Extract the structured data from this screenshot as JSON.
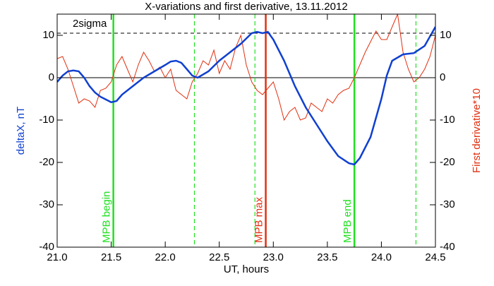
{
  "chart_data": {
    "type": "line",
    "title": "X-variations and first derivative, 13.11.2012",
    "xlabel": "UT, hours",
    "ylabel": "deltaX, nT",
    "y2label": "First derivative*10",
    "xlim": [
      21.0,
      24.5
    ],
    "xticks": [
      {
        "value": 21.0,
        "label": "21.0"
      },
      {
        "value": 21.5,
        "label": "21.5"
      },
      {
        "value": 22.0,
        "label": "22.0"
      },
      {
        "value": 22.5,
        "label": "22.5"
      },
      {
        "value": 23.0,
        "label": "23.0"
      },
      {
        "value": 23.5,
        "label": "23.5"
      },
      {
        "value": 24.0,
        "label": "24.0"
      },
      {
        "value": 24.5,
        "label": "24.5"
      }
    ],
    "ylim": [
      -40,
      15
    ],
    "yticks": [
      -40,
      -30,
      -20,
      -10,
      0,
      10
    ],
    "y2lim": [
      -40,
      15
    ],
    "y2ticks": [
      -40,
      -30,
      -20,
      -10,
      0,
      10
    ],
    "series": [
      {
        "color": "#1040d0",
        "axis": "y",
        "x": [
          21.0,
          21.05,
          21.1,
          21.15,
          21.2,
          21.25,
          21.3,
          21.35,
          21.4,
          21.5,
          21.55,
          21.6,
          21.7,
          21.8,
          21.9,
          22.0,
          22.05,
          22.1,
          22.15,
          22.2,
          22.25,
          22.3,
          22.4,
          22.5,
          22.6,
          22.7,
          22.8,
          22.85,
          22.9,
          22.95,
          23.0,
          23.1,
          23.2,
          23.3,
          23.4,
          23.5,
          23.6,
          23.7,
          23.75,
          23.8,
          23.9,
          24.0,
          24.05,
          24.1,
          24.2,
          24.3,
          24.4,
          24.5
        ],
        "values": [
          -1,
          0.5,
          1.5,
          1.7,
          1.5,
          0,
          -2,
          -3.5,
          -4.5,
          -5.8,
          -5.5,
          -4,
          -2,
          0,
          1.5,
          3,
          3.8,
          4,
          3.5,
          2,
          0.5,
          0,
          1.5,
          4,
          6,
          8,
          10.5,
          10.8,
          10.5,
          10.8,
          9,
          4,
          -2,
          -7,
          -11,
          -15,
          -18.5,
          -20.2,
          -20.5,
          -19,
          -14,
          -5,
          0.5,
          4,
          5.5,
          5.8,
          7.5,
          12
        ]
      },
      {
        "color": "#e03010",
        "axis": "y2",
        "x": [
          21.0,
          21.05,
          21.1,
          21.15,
          21.2,
          21.25,
          21.3,
          21.35,
          21.4,
          21.45,
          21.5,
          21.55,
          21.6,
          21.65,
          21.7,
          21.75,
          21.8,
          21.85,
          21.9,
          21.95,
          22.0,
          22.05,
          22.1,
          22.15,
          22.2,
          22.25,
          22.3,
          22.35,
          22.4,
          22.45,
          22.5,
          22.55,
          22.6,
          22.65,
          22.7,
          22.75,
          22.8,
          22.85,
          22.9,
          22.95,
          23.0,
          23.05,
          23.1,
          23.15,
          23.2,
          23.25,
          23.3,
          23.35,
          23.4,
          23.45,
          23.5,
          23.55,
          23.6,
          23.65,
          23.7,
          23.75,
          23.8,
          23.85,
          23.9,
          23.95,
          24.0,
          24.05,
          24.1,
          24.15,
          24.2,
          24.25,
          24.3,
          24.35,
          24.4,
          24.45,
          24.5
        ],
        "values": [
          4.5,
          5,
          2,
          -2,
          -6,
          -5,
          -5.5,
          -7,
          -3,
          -2.5,
          -1,
          3,
          5,
          2,
          -1,
          3,
          6,
          4,
          1.5,
          2.5,
          0,
          2,
          -3,
          -4,
          -5,
          -1,
          1,
          4,
          3,
          6.5,
          1,
          4,
          2,
          7,
          10,
          3,
          -1,
          -3,
          -4,
          -2.5,
          -1,
          -5,
          -10,
          -8,
          -7,
          -10,
          -9.5,
          -6,
          -7,
          -8,
          -5,
          -6,
          -4,
          -3,
          -2.5,
          0,
          3,
          6,
          8.5,
          11,
          9,
          9,
          12,
          15,
          6,
          2,
          -1,
          0,
          2,
          5,
          10
        ]
      }
    ],
    "hlines": [
      {
        "y": 10.5,
        "color": "#000000",
        "dash": true,
        "label": "2sigma"
      },
      {
        "y": 0,
        "color": "#000000",
        "dash": false
      }
    ],
    "vlines": [
      {
        "x": 21.52,
        "color": "#20e020",
        "dash": false,
        "label": "MPB begin"
      },
      {
        "x": 22.27,
        "color": "#20e020",
        "dash": true
      },
      {
        "x": 22.83,
        "color": "#20e020",
        "dash": true
      },
      {
        "x": 22.93,
        "color": "#e03010",
        "dash": false,
        "label": "MPB max"
      },
      {
        "x": 23.75,
        "color": "#20e020",
        "dash": false,
        "label": "MPB end"
      },
      {
        "x": 24.32,
        "color": "#20e020",
        "dash": true
      }
    ]
  }
}
